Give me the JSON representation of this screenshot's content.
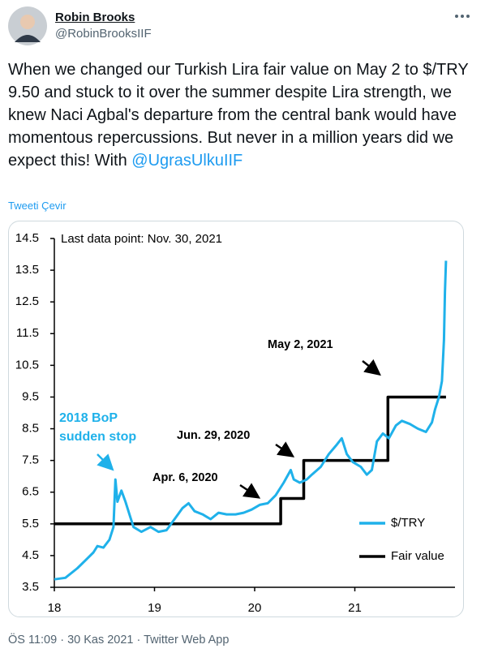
{
  "tweet": {
    "name": "Robin Brooks",
    "handle": "@RobinBrooksIIF",
    "text": "When we changed our Turkish Lira fair value on May 2 to $/TRY 9.50 and stuck to it over the summer despite Lira strength, we knew Naci Agbal's departure from the central bank would have momentous repercussions. But never in a million years did we expect this! With",
    "mention": "@UgrasUlkuIIF",
    "translate": "Tweeti Çevir",
    "footer": "ÖS 11:09 · 30 Kas 2021 · Twitter Web App"
  },
  "chart_data": {
    "type": "line",
    "annotations": [
      "Last data point: Nov. 30, 2021",
      "Apr. 6, 2020",
      "Jun. 29, 2020",
      "May 2, 2021"
    ],
    "callout": [
      "2018 BoP",
      "sudden stop"
    ],
    "xlim": [
      18,
      22
    ],
    "xticks": [
      18,
      19,
      20,
      21
    ],
    "ylim": [
      3.5,
      14.5
    ],
    "yticks": [
      3.5,
      4.5,
      5.5,
      6.5,
      7.5,
      8.5,
      9.5,
      10.5,
      11.5,
      12.5,
      13.5,
      14.5
    ],
    "series": [
      {
        "name": "$/TRY",
        "color": "#1fb1ea",
        "x": [
          18.0,
          18.11,
          18.23,
          18.31,
          18.39,
          18.43,
          18.49,
          18.55,
          18.59,
          18.61,
          18.63,
          18.67,
          18.71,
          18.75,
          18.79,
          18.87,
          18.96,
          19.04,
          19.12,
          19.2,
          19.28,
          19.34,
          19.4,
          19.48,
          19.56,
          19.64,
          19.72,
          19.81,
          19.89,
          19.97,
          20.05,
          20.13,
          20.21,
          20.29,
          20.36,
          20.39,
          20.45,
          20.52,
          20.57,
          20.66,
          20.74,
          20.82,
          20.87,
          20.92,
          20.98,
          21.06,
          21.12,
          21.17,
          21.22,
          21.28,
          21.34,
          21.41,
          21.47,
          21.55,
          21.63,
          21.71,
          21.77,
          21.8,
          21.84,
          21.87,
          21.89,
          21.9,
          21.91
        ],
        "values": [
          3.75,
          3.8,
          4.1,
          4.35,
          4.6,
          4.8,
          4.75,
          5.0,
          5.4,
          6.9,
          6.2,
          6.55,
          6.2,
          5.8,
          5.4,
          5.25,
          5.4,
          5.25,
          5.3,
          5.65,
          6.0,
          6.15,
          5.9,
          5.8,
          5.65,
          5.85,
          5.8,
          5.8,
          5.85,
          5.95,
          6.1,
          6.15,
          6.4,
          6.8,
          7.2,
          6.9,
          6.8,
          6.9,
          7.05,
          7.3,
          7.7,
          8.0,
          8.2,
          7.7,
          7.45,
          7.3,
          7.05,
          7.2,
          8.1,
          8.35,
          8.2,
          8.6,
          8.75,
          8.65,
          8.5,
          8.4,
          8.7,
          9.1,
          9.5,
          10.0,
          11.3,
          12.8,
          13.8
        ]
      },
      {
        "name": "Fair value",
        "color": "#000000",
        "x": [
          18.0,
          20.26,
          20.26,
          20.49,
          20.49,
          21.33,
          21.33,
          21.91
        ],
        "values": [
          5.5,
          5.5,
          6.3,
          6.3,
          7.5,
          7.5,
          9.5,
          9.5
        ]
      }
    ]
  }
}
